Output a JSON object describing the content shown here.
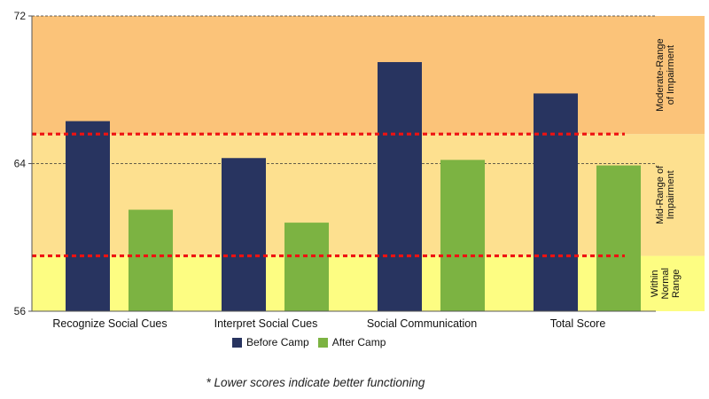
{
  "chart_data": {
    "type": "bar",
    "categories": [
      "Recognize Social Cues",
      "Interpret Social Cues",
      "Social Communication",
      "Total Score"
    ],
    "series": [
      {
        "name": "Before Camp",
        "values": [
          66.3,
          64.3,
          69.5,
          67.8
        ],
        "color": "#283460"
      },
      {
        "name": "After Camp",
        "values": [
          61.5,
          60.8,
          64.2,
          63.9
        ],
        "color": "#7cb342"
      }
    ],
    "ylim": [
      56,
      72
    ],
    "yticks": [
      56,
      64,
      72
    ],
    "bands": [
      {
        "label_lines": [
          "Within",
          "Normal",
          "Range"
        ],
        "from": 56,
        "to": 59.0,
        "color": "#fdfd82"
      },
      {
        "label_lines": [
          "Mid-Range of",
          "Impairment"
        ],
        "from": 59.0,
        "to": 65.6,
        "color": "#fde08f"
      },
      {
        "label_lines": [
          "Moderate-Range",
          "of Impairment"
        ],
        "from": 65.6,
        "to": 72,
        "color": "#fbc379"
      }
    ],
    "thresholds": [
      59.0,
      65.6
    ],
    "threshold_color": "#ee1111",
    "gridlines": true,
    "legend_position": "bottom"
  },
  "footnote": "* Lower scores indicate better functioning"
}
